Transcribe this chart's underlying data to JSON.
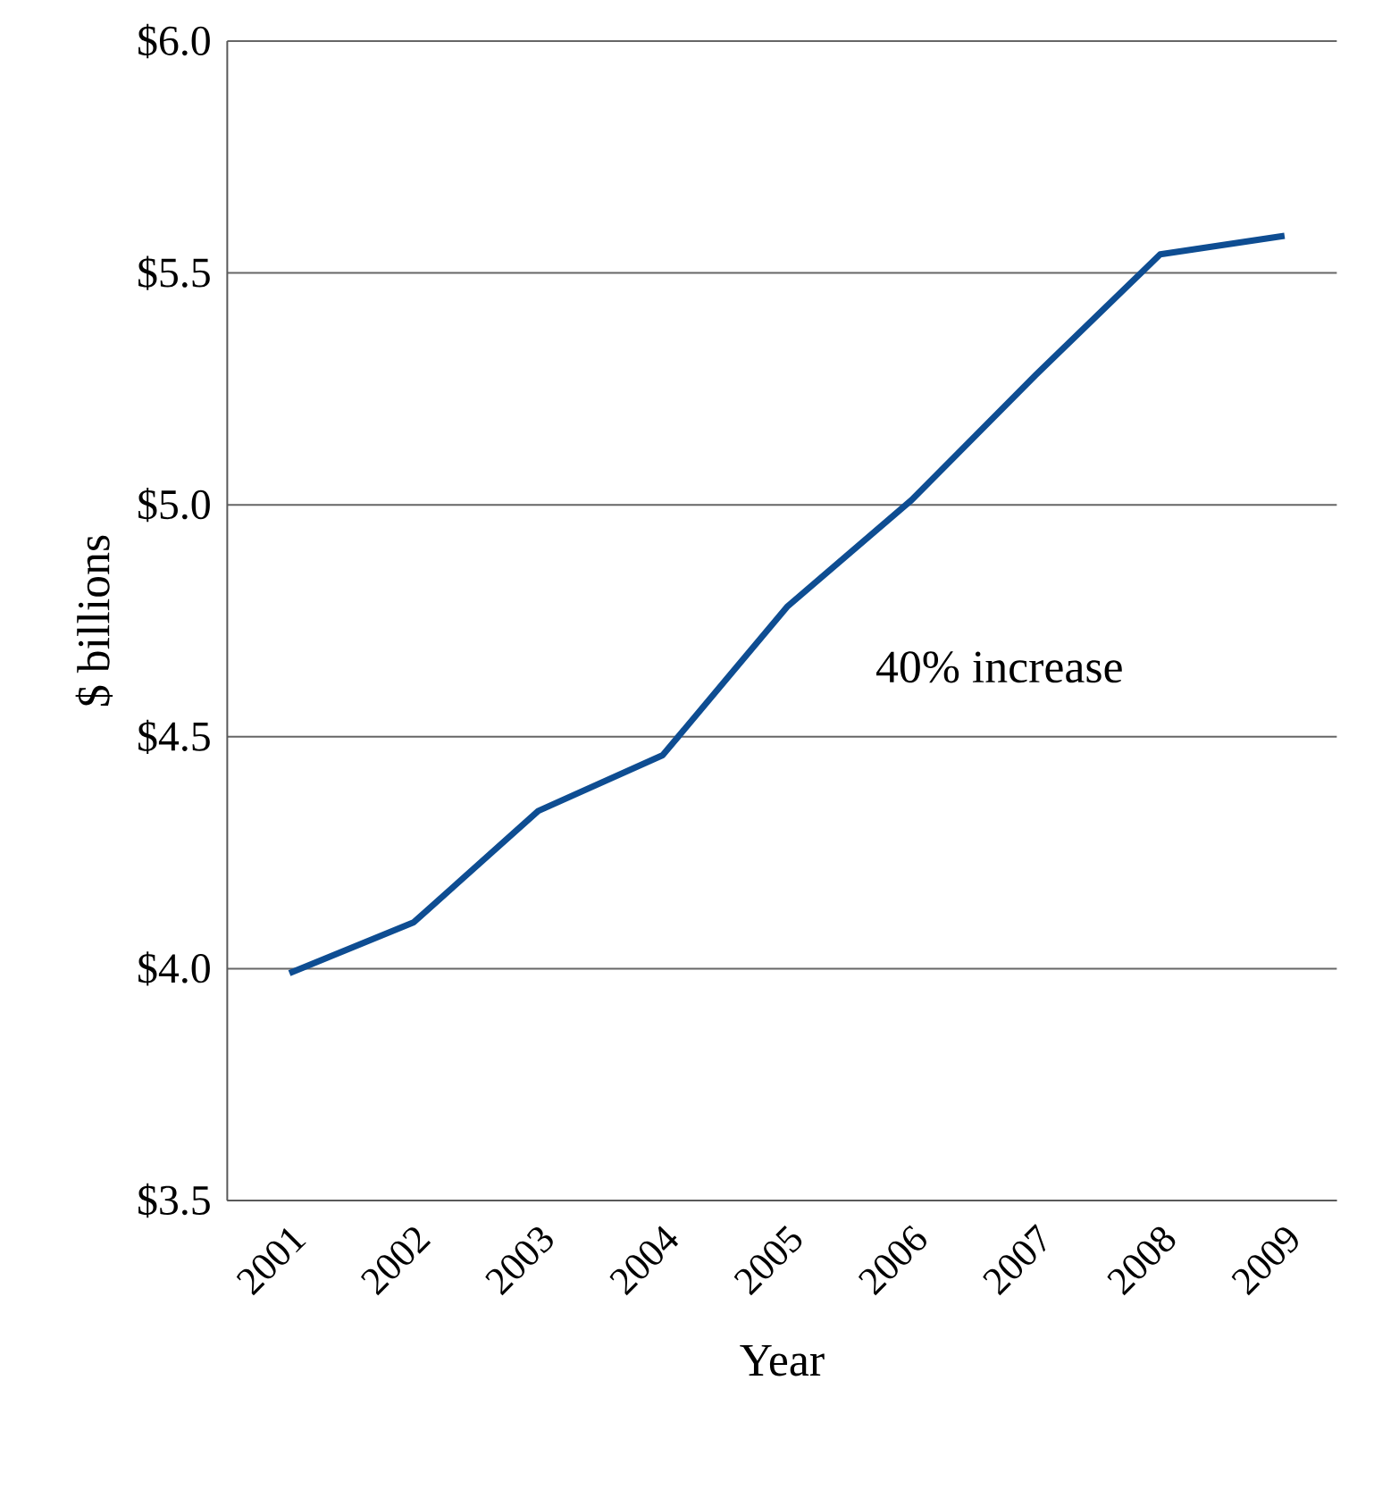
{
  "chart_data": {
    "type": "line",
    "xlabel": "Year",
    "ylabel": "$ billions",
    "categories": [
      "2001",
      "2002",
      "2003",
      "2004",
      "2005",
      "2006",
      "2007",
      "2008",
      "2009"
    ],
    "series": [
      {
        "color": "#0e4d92",
        "values": [
          3.99,
          4.1,
          4.34,
          4.46,
          4.78,
          5.01,
          5.28,
          5.54,
          5.58
        ]
      }
    ],
    "ylim": [
      3.5,
      6.0
    ],
    "yticks": [
      {
        "value": 3.5,
        "label": "$3.5"
      },
      {
        "value": 4.0,
        "label": "$4.0"
      },
      {
        "value": 4.5,
        "label": "$4.5"
      },
      {
        "value": 5.0,
        "label": "$5.0"
      },
      {
        "value": 5.5,
        "label": "$5.5"
      },
      {
        "value": 6.0,
        "label": "$6.0"
      }
    ],
    "grid": "y",
    "legend": false,
    "marker": "none",
    "line_style": "solid",
    "annotations": [
      "40% increase"
    ]
  }
}
